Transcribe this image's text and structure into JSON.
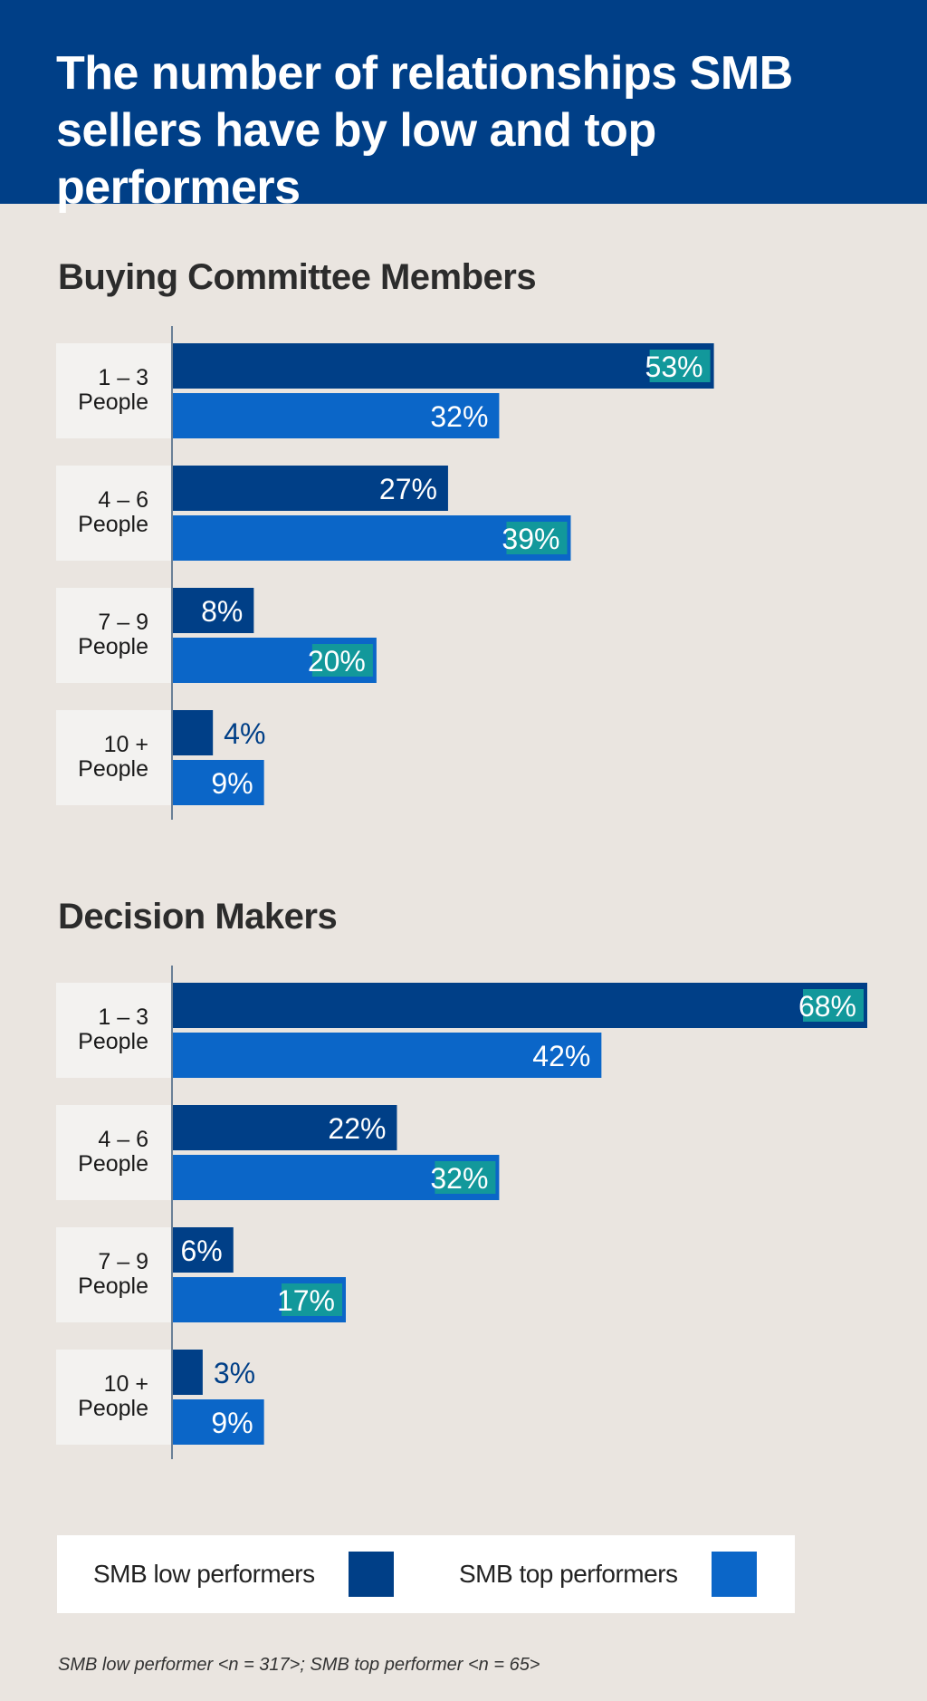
{
  "title": "The number of relationships SMB sellers have by low and top performers",
  "colors": {
    "header_bg": "#003F87",
    "low_performers": "#003F87",
    "top_performers": "#0B66C8",
    "highlight_label_bg": "#12989B",
    "category_bg": "#F3F2F0",
    "page_bg": "#EAE5E0"
  },
  "chart_data": [
    {
      "type": "bar",
      "orientation": "horizontal",
      "title": "Buying Committee Members",
      "categories": [
        {
          "line1": "1 – 3",
          "line2": "People"
        },
        {
          "line1": "4 – 6",
          "line2": "People"
        },
        {
          "line1": "7 – 9",
          "line2": "People"
        },
        {
          "line1": "10 +",
          "line2": "People"
        }
      ],
      "series": [
        {
          "name": "SMB low performers",
          "values": [
            53,
            27,
            8,
            4
          ],
          "labels": [
            "53%",
            "27%",
            "8%",
            "4%"
          ]
        },
        {
          "name": "SMB top performers",
          "values": [
            32,
            39,
            20,
            9
          ],
          "labels": [
            "32%",
            "39%",
            "20%",
            "9%"
          ]
        }
      ],
      "highlighted": [
        [
          0,
          0
        ],
        [
          1,
          1
        ],
        [
          1,
          2
        ]
      ],
      "xlim": [
        0,
        68
      ],
      "unit": "%"
    },
    {
      "type": "bar",
      "orientation": "horizontal",
      "title": "Decision Makers",
      "categories": [
        {
          "line1": "1 – 3",
          "line2": "People"
        },
        {
          "line1": "4 – 6",
          "line2": "People"
        },
        {
          "line1": "7 – 9",
          "line2": "People"
        },
        {
          "line1": "10 +",
          "line2": "People"
        }
      ],
      "series": [
        {
          "name": "SMB low performers",
          "values": [
            68,
            22,
            6,
            3
          ],
          "labels": [
            "68%",
            "22%",
            "6%",
            "3%"
          ]
        },
        {
          "name": "SMB top performers",
          "values": [
            42,
            32,
            17,
            9
          ],
          "labels": [
            "42%",
            "32%",
            "17%",
            "9%"
          ]
        }
      ],
      "highlighted": [
        [
          0,
          0
        ],
        [
          1,
          1
        ],
        [
          1,
          2
        ]
      ],
      "xlim": [
        0,
        68
      ],
      "unit": "%"
    }
  ],
  "legend": {
    "placement": "bottom",
    "items": [
      {
        "label": "SMB low performers",
        "color": "#003F87"
      },
      {
        "label": "SMB top performers",
        "color": "#0B66C8"
      }
    ]
  },
  "footnote": "SMB low performer <n = 317>; SMB top performer <n = 65>"
}
